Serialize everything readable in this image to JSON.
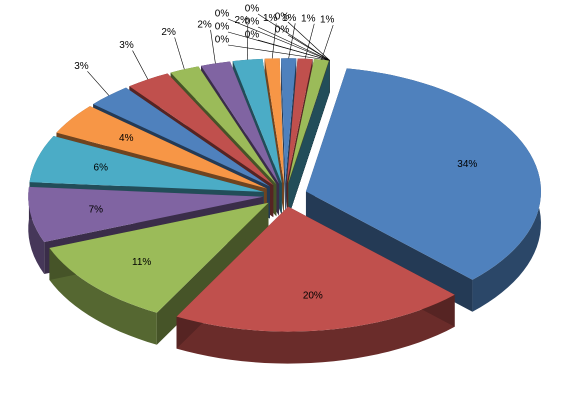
{
  "chart_data": {
    "type": "pie",
    "values": [
      34,
      20,
      11,
      7,
      6,
      4,
      3,
      3,
      2,
      2,
      2,
      1,
      1,
      1,
      1,
      0,
      0,
      0,
      0,
      0,
      0,
      0,
      0
    ],
    "value_labels": [
      "34%",
      "20%",
      "11%",
      "7%",
      "6%",
      "4%",
      "3%",
      "3%",
      "2%",
      "2%",
      "2%",
      "1%",
      "1%",
      "1%",
      "1%",
      "0%",
      "0%",
      "0%",
      "0%",
      "0%",
      "0%",
      "0%",
      "0%"
    ],
    "colors": [
      "#4f81bd",
      "#c0504d",
      "#9bbb59",
      "#8064a2",
      "#4bacc6",
      "#f79646"
    ]
  }
}
